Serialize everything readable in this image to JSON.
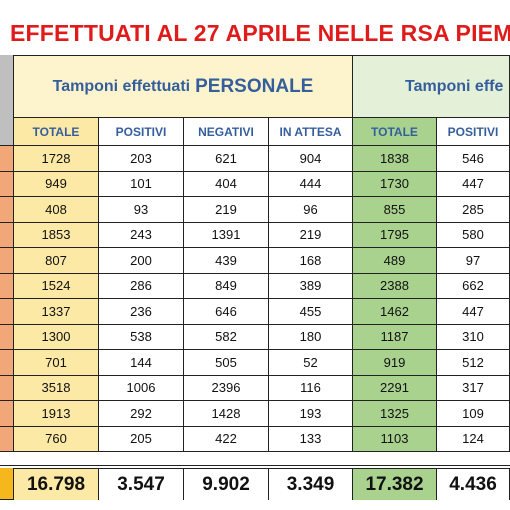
{
  "title": "EFFETTUATI AL 27 APRILE NELLE RSA PIEM",
  "sections": [
    {
      "label": "Tamponi effettuati",
      "highlight": "PERSONALE"
    },
    {
      "label": "Tamponi effe",
      "highlight": ""
    }
  ],
  "columns": [
    "TOTALE",
    "POSITIVI",
    "NEGATIVI",
    "IN ATTESA",
    "TOTALE",
    "POSITIVI"
  ],
  "rows": [
    [
      "1728",
      "203",
      "621",
      "904",
      "1838",
      "546"
    ],
    [
      "949",
      "101",
      "404",
      "444",
      "1730",
      "447"
    ],
    [
      "408",
      "93",
      "219",
      "96",
      "855",
      "285"
    ],
    [
      "1853",
      "243",
      "1391",
      "219",
      "1795",
      "580"
    ],
    [
      "807",
      "200",
      "439",
      "168",
      "489",
      "97"
    ],
    [
      "1524",
      "286",
      "849",
      "389",
      "2388",
      "662"
    ],
    [
      "1337",
      "236",
      "646",
      "455",
      "1462",
      "447"
    ],
    [
      "1300",
      "538",
      "582",
      "180",
      "1187",
      "310"
    ],
    [
      "701",
      "144",
      "505",
      "52",
      "919",
      "512"
    ],
    [
      "3518",
      "1006",
      "2396",
      "116",
      "2291",
      "317"
    ],
    [
      "1913",
      "292",
      "1428",
      "193",
      "1325",
      "109"
    ],
    [
      "760",
      "205",
      "422",
      "133",
      "1103",
      "124"
    ]
  ],
  "totals": [
    "16.798",
    "3.547",
    "9.902",
    "3.349",
    "17.382",
    "4.436"
  ],
  "colors": {
    "title": "#e01b1b",
    "header_text": "#355e9c",
    "personale_header_bg": "#fce9a6",
    "total_column_yellow": "#fce9a6",
    "total_column_green": "#a9d28e",
    "second_header_bg": "#e4f1d8",
    "totals_highlight": "#f5b71c",
    "left_strip": "#f2a779"
  }
}
